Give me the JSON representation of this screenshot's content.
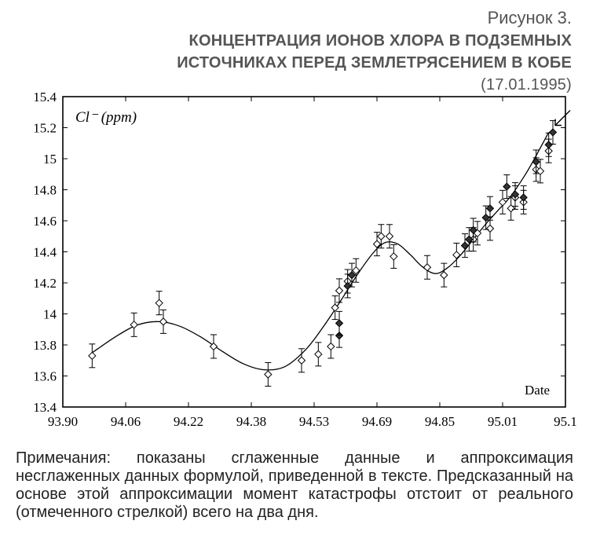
{
  "figure": {
    "label": "Рисунок 3.",
    "title": "КОНЦЕНТРАЦИЯ ИОНОВ ХЛОРА В ПОДЗЕМНЫХ ИСТОЧНИКАХ ПЕРЕД ЗЕМЛЕТРЯСЕНИЕМ В КОБЕ",
    "title_dates": "(17.01.1995)",
    "notes": "Примечания: показаны сглаженные данные и аппроксимация несглаженных данных формулой, приведенной в тексте. Предсказанный на основе этой аппроксимации момент катастрофы отстоит от реального (отмеченного стрелкой) всего на два дня."
  },
  "chart_data": {
    "type": "scatter",
    "title": "",
    "series_label": "Cl⁻ (ppm)",
    "xlabel": "Date",
    "ylabel": "Cl⁻ (ppm)",
    "xlim": [
      93.9,
      95.1
    ],
    "ylim": [
      13.4,
      15.4
    ],
    "x_ticks": [
      "93.90",
      "94.06",
      "94.22",
      "94.38",
      "94.53",
      "94.69",
      "94.85",
      "95.01",
      "95.1"
    ],
    "y_ticks": [
      "13.4",
      "13.6",
      "13.8",
      "14",
      "14.2",
      "14.4",
      "14.6",
      "14.8",
      "15",
      "15.2",
      "15.4"
    ],
    "grid": false,
    "smoothed_points": [
      [
        93.97,
        13.73
      ],
      [
        94.07,
        13.93
      ],
      [
        94.13,
        14.07
      ],
      [
        94.14,
        13.95
      ],
      [
        94.26,
        13.79
      ],
      [
        94.39,
        13.61
      ],
      [
        94.47,
        13.7
      ],
      [
        94.51,
        13.74
      ],
      [
        94.54,
        13.79
      ],
      [
        94.55,
        14.04
      ],
      [
        94.56,
        14.15
      ],
      [
        94.58,
        14.21
      ],
      [
        94.6,
        14.28
      ],
      [
        94.65,
        14.45
      ],
      [
        94.66,
        14.5
      ],
      [
        94.68,
        14.5
      ],
      [
        94.69,
        14.37
      ],
      [
        94.77,
        14.3
      ],
      [
        94.81,
        14.25
      ],
      [
        94.84,
        14.38
      ],
      [
        94.88,
        14.48
      ],
      [
        94.89,
        14.52
      ],
      [
        94.92,
        14.55
      ],
      [
        94.95,
        14.72
      ],
      [
        94.97,
        14.68
      ],
      [
        94.98,
        14.75
      ],
      [
        95.0,
        14.72
      ],
      [
        95.03,
        14.93
      ],
      [
        95.04,
        14.92
      ],
      [
        95.06,
        15.05
      ]
    ],
    "raw_points": [
      [
        94.56,
        13.86
      ],
      [
        94.56,
        13.94
      ],
      [
        94.58,
        14.18
      ],
      [
        94.59,
        14.25
      ],
      [
        94.86,
        14.44
      ],
      [
        94.87,
        14.48
      ],
      [
        94.88,
        14.54
      ],
      [
        94.91,
        14.62
      ],
      [
        94.92,
        14.68
      ],
      [
        94.96,
        14.82
      ],
      [
        94.98,
        14.77
      ],
      [
        95.0,
        14.75
      ],
      [
        95.03,
        14.98
      ],
      [
        95.06,
        15.09
      ],
      [
        95.07,
        15.17
      ]
    ],
    "fit_curve": [
      [
        93.97,
        13.75
      ],
      [
        94.03,
        13.86
      ],
      [
        94.08,
        13.93
      ],
      [
        94.13,
        13.95
      ],
      [
        94.18,
        13.92
      ],
      [
        94.23,
        13.85
      ],
      [
        94.28,
        13.76
      ],
      [
        94.33,
        13.68
      ],
      [
        94.38,
        13.64
      ],
      [
        94.43,
        13.66
      ],
      [
        94.48,
        13.77
      ],
      [
        94.52,
        13.91
      ],
      [
        94.56,
        14.07
      ],
      [
        94.6,
        14.24
      ],
      [
        94.64,
        14.39
      ],
      [
        94.67,
        14.46
      ],
      [
        94.7,
        14.45
      ],
      [
        94.73,
        14.38
      ],
      [
        94.76,
        14.3
      ],
      [
        94.79,
        14.26
      ],
      [
        94.82,
        14.3
      ],
      [
        94.85,
        14.38
      ],
      [
        94.88,
        14.48
      ],
      [
        94.91,
        14.58
      ],
      [
        94.94,
        14.67
      ],
      [
        94.97,
        14.76
      ],
      [
        95.0,
        14.88
      ],
      [
        95.02,
        14.97
      ],
      [
        95.04,
        15.07
      ],
      [
        95.06,
        15.17
      ]
    ],
    "arrow_marker": {
      "x": 95.07,
      "y": 15.2,
      "meaning": "earthquake date"
    }
  }
}
